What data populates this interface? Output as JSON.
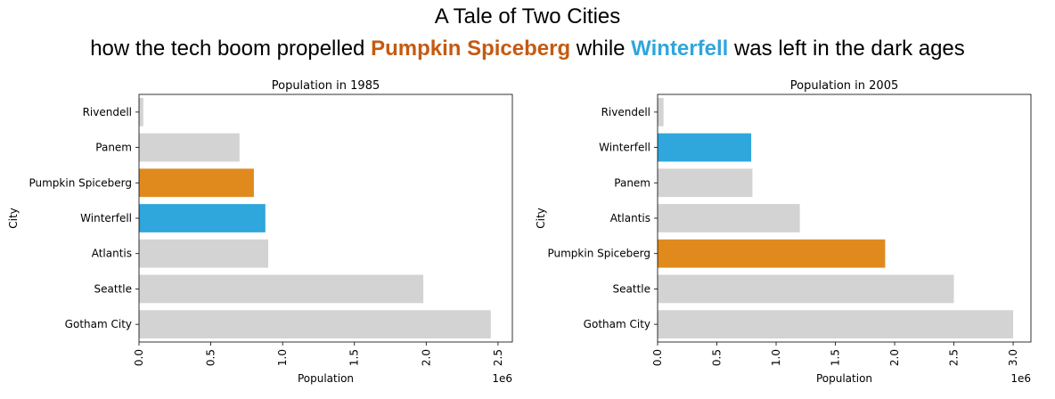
{
  "header": {
    "title": "A Tale of Two Cities",
    "subtitle_prefix": "how the tech boom propelled ",
    "highlight_a": "Pumpkin Spiceberg",
    "subtitle_middle": " while ",
    "highlight_b": "Winterfell",
    "subtitle_suffix": " was left in the dark ages"
  },
  "colors": {
    "pumpkin_spiceberg": "#e08a1e",
    "winterfell": "#2fa6dc",
    "pumpkin_text": "#c55a11",
    "winterfell_text": "#2fa6dc",
    "other": "#d3d3d3"
  },
  "chart_data": [
    {
      "type": "bar",
      "orientation": "horizontal",
      "title": "Population in 1985",
      "xlabel": "Population",
      "ylabel": "City",
      "x_scale_label": "1e6",
      "xlim": [
        0,
        2.6
      ],
      "xticks": [
        "0.0",
        "0.5",
        "1.0",
        "1.5",
        "2.0",
        "2.5"
      ],
      "categories": [
        "Rivendell",
        "Panem",
        "Pumpkin Spiceberg",
        "Winterfell",
        "Atlantis",
        "Seattle",
        "Gotham City"
      ],
      "values": [
        0.03,
        0.7,
        0.8,
        0.88,
        0.9,
        1.98,
        2.45
      ]
    },
    {
      "type": "bar",
      "orientation": "horizontal",
      "title": "Population in 2005",
      "xlabel": "Population",
      "ylabel": "City",
      "x_scale_label": "1e6",
      "xlim": [
        0,
        3.15
      ],
      "xticks": [
        "0.0",
        "0.5",
        "1.0",
        "1.5",
        "2.0",
        "2.5",
        "3.0"
      ],
      "categories": [
        "Rivendell",
        "Winterfell",
        "Panem",
        "Atlantis",
        "Pumpkin Spiceberg",
        "Seattle",
        "Gotham City"
      ],
      "values": [
        0.05,
        0.79,
        0.8,
        1.2,
        1.92,
        2.5,
        3.0
      ]
    }
  ]
}
